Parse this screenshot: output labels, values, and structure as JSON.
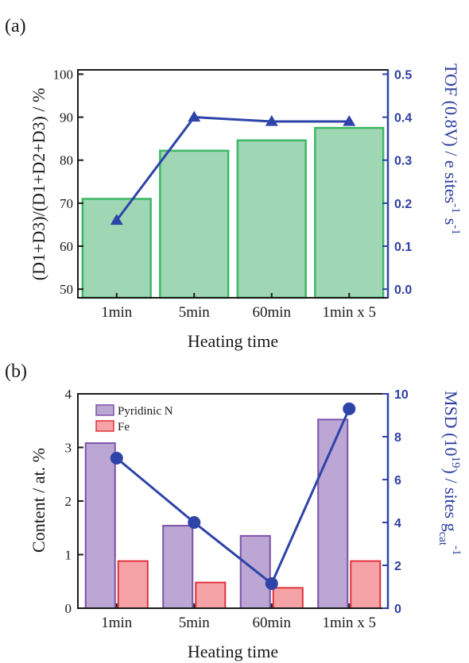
{
  "colors": {
    "green_fill": "#9fd6b4",
    "green_stroke": "#3cb865",
    "purple_fill": "#bba6d4",
    "purple_stroke": "#7d52a8",
    "red_fill": "#f6a3a7",
    "red_stroke": "#e0333d",
    "blue": "#2e44a8",
    "axis_black": "#1a1a1a"
  },
  "chart_data": [
    {
      "panel": "(a)",
      "type": "bar",
      "categories": [
        "1min",
        "5min",
        "60min",
        "1min x 5"
      ],
      "xlabel": "Heating time",
      "ylabel": "(D1+D3)/(D1+D2+D3) / %",
      "ylim": [
        48,
        101
      ],
      "yticks": [
        50,
        60,
        70,
        80,
        90,
        100
      ],
      "series": [
        {
          "axis": "left",
          "kind": "bar",
          "values": [
            71,
            82.2,
            84.6,
            87.5
          ]
        }
      ],
      "y2label_main": "TOF (0.8V) / e sites",
      "y2label_sup1": "-1",
      "y2label_mid": "s",
      "y2label_sup2": "-1",
      "y2lim": [
        -0.02,
        0.51
      ],
      "y2ticks": [
        "0.0",
        "0.1",
        "0.2",
        "0.3",
        "0.4",
        "0.5"
      ],
      "line": {
        "axis": "right",
        "marker": "triangle",
        "values": [
          0.16,
          0.4,
          0.39,
          0.39
        ]
      }
    },
    {
      "panel": "(b)",
      "type": "bar",
      "categories": [
        "1min",
        "5min",
        "60min",
        "1min x 5"
      ],
      "xlabel": "Heating time",
      "ylabel": "Content / at. %",
      "ylim": [
        0,
        4
      ],
      "yticks": [
        "0",
        "1",
        "2",
        "3",
        "4"
      ],
      "legend_position": "top-left",
      "series": [
        {
          "name": "Pyridinic N",
          "axis": "left",
          "kind": "bar",
          "values": [
            3.08,
            1.54,
            1.35,
            3.52
          ]
        },
        {
          "name": "Fe",
          "axis": "left",
          "kind": "bar",
          "values": [
            0.88,
            0.48,
            0.38,
            0.88
          ]
        }
      ],
      "y2label_main": "MSD (10",
      "y2label_sup": "19",
      "y2label_mid": ") / sites g",
      "y2label_sub": "cat",
      "y2label_sup2": "-1",
      "y2lim": [
        0,
        10
      ],
      "y2ticks": [
        "0",
        "2",
        "4",
        "6",
        "8",
        "10"
      ],
      "line": {
        "axis": "right",
        "marker": "circle",
        "values": [
          7.0,
          4.0,
          1.15,
          9.3
        ]
      }
    }
  ]
}
